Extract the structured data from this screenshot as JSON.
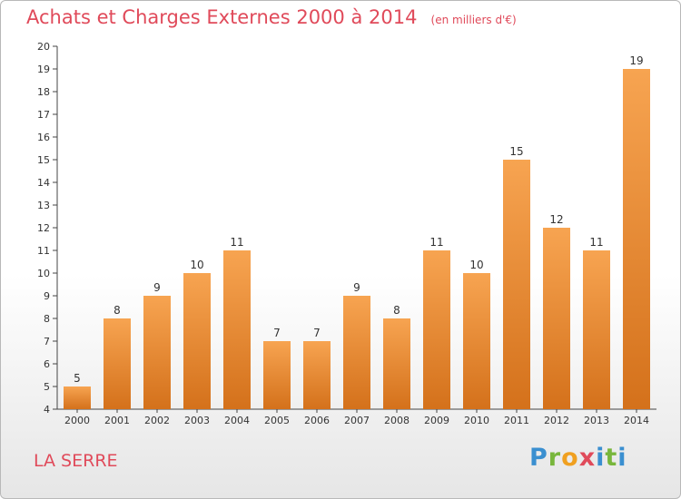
{
  "title": "Achats et Charges Externes 2000 à 2014",
  "unit": "(en milliers d'€)",
  "location": "LA SERRE",
  "logo": "Proxiti",
  "chart_data": {
    "type": "bar",
    "categories": [
      "2000",
      "2001",
      "2002",
      "2003",
      "2004",
      "2005",
      "2006",
      "2007",
      "2008",
      "2009",
      "2010",
      "2011",
      "2012",
      "2013",
      "2014"
    ],
    "values": [
      5,
      8,
      9,
      10,
      11,
      7,
      7,
      9,
      8,
      11,
      10,
      15,
      12,
      11,
      19
    ],
    "ylim": [
      4,
      20
    ],
    "yticks": [
      4,
      5,
      6,
      7,
      8,
      9,
      10,
      11,
      12,
      13,
      14,
      15,
      16,
      17,
      18,
      19,
      20
    ],
    "grid": false,
    "legend": "none",
    "colors": {
      "bar_top": "#f7a451",
      "bar_bottom": "#d4711b",
      "axis": "#444444"
    }
  }
}
